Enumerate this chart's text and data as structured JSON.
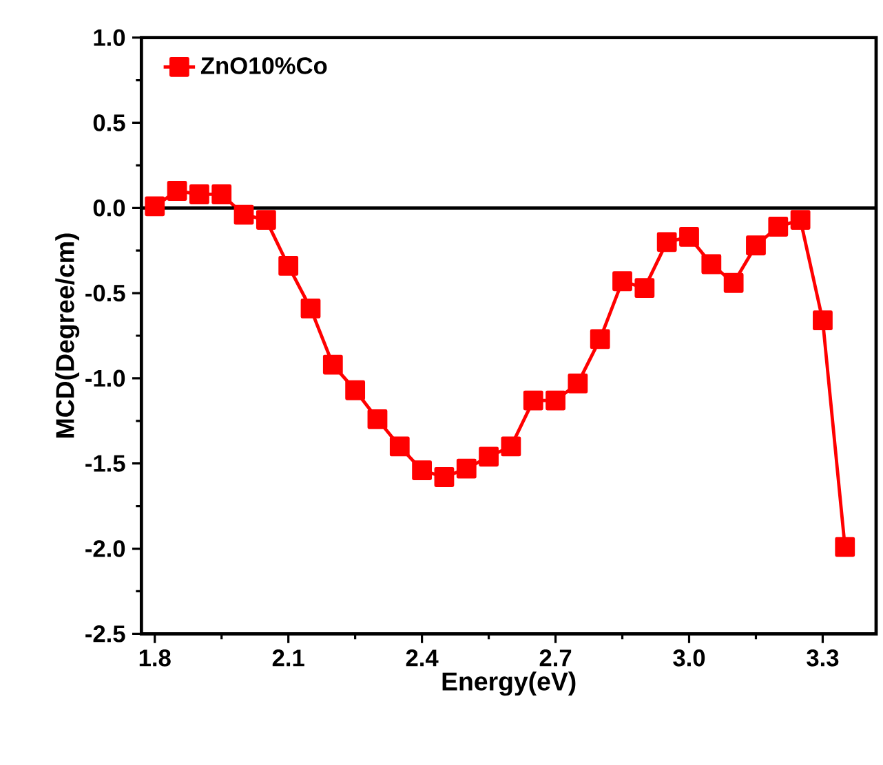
{
  "chart_data": {
    "type": "line",
    "xlabel": "Energy(eV)",
    "ylabel": "MCD(Degree/cm)",
    "x": [
      1.8,
      1.85,
      1.9,
      1.95,
      2.0,
      2.05,
      2.1,
      2.15,
      2.2,
      2.25,
      2.3,
      2.35,
      2.4,
      2.45,
      2.5,
      2.55,
      2.6,
      2.65,
      2.7,
      2.75,
      2.8,
      2.85,
      2.9,
      2.95,
      3.0,
      3.05,
      3.1,
      3.15,
      3.2,
      3.25,
      3.3,
      3.35
    ],
    "series": [
      {
        "name": "ZnO10%Co",
        "color": "#ff0000",
        "values": [
          0.01,
          0.1,
          0.08,
          0.08,
          -0.04,
          -0.07,
          -0.34,
          -0.59,
          -0.92,
          -1.07,
          -1.24,
          -1.4,
          -1.54,
          -1.58,
          -1.53,
          -1.46,
          -1.4,
          -1.13,
          -1.13,
          -1.03,
          -0.77,
          -0.43,
          -0.47,
          -0.2,
          -0.17,
          -0.33,
          -0.44,
          -0.22,
          -0.11,
          -0.07,
          -0.66,
          -1.99
        ]
      }
    ],
    "xlim": [
      1.77,
      3.42
    ],
    "ylim": [
      -2.5,
      1.0
    ],
    "xticks": [
      1.8,
      2.1,
      2.4,
      2.7,
      {
        "value": 3.0,
        "label": "3.0"
      },
      3.3
    ],
    "yticks": [
      {
        "value": -2.5,
        "label": "-2.5"
      },
      {
        "value": -2.0,
        "label": "-2.0"
      },
      {
        "value": -1.5,
        "label": "-1.5"
      },
      {
        "value": -1.0,
        "label": "-1.0"
      },
      {
        "value": -0.5,
        "label": "-0.5"
      },
      {
        "value": 0.0,
        "label": "0.0"
      },
      {
        "value": 0.5,
        "label": "0.5"
      },
      {
        "value": 1.0,
        "label": "1.0"
      }
    ],
    "ref_lines": [
      {
        "axis": "y",
        "value": 0,
        "color": "#000000"
      }
    ],
    "grid": false,
    "legend": "top left",
    "marker": "square",
    "line_style": "solid"
  }
}
